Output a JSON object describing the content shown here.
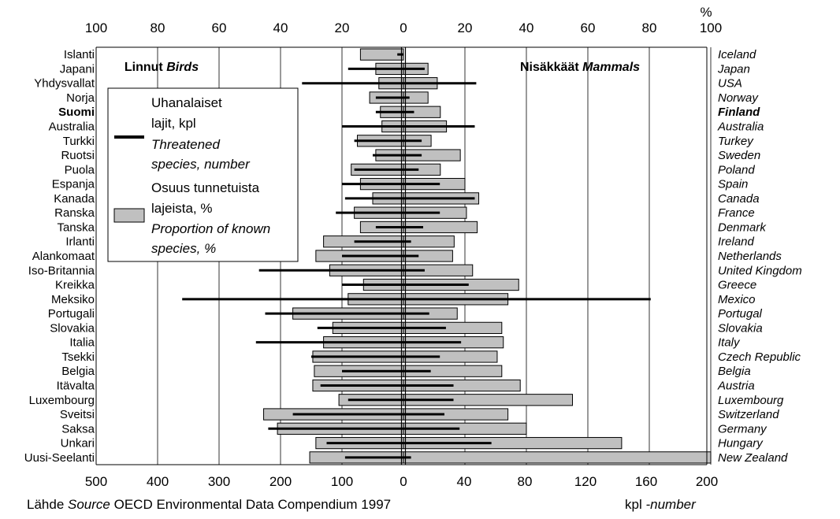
{
  "chart_data": {
    "type": "bar",
    "top_axis_ticks": [
      "100",
      "80",
      "60",
      "40",
      "20",
      "0",
      "20",
      "40",
      "60",
      "80",
      "100"
    ],
    "top_axis_unit": "%",
    "bottom_axis_ticks_birds": [
      "500",
      "400",
      "300",
      "200",
      "100",
      "0"
    ],
    "bottom_axis_ticks_mammals": [
      "40",
      "80",
      "120",
      "160",
      "200"
    ],
    "birds_header": {
      "fi": "Linnut",
      "en": "Birds"
    },
    "mammals_header": {
      "fi": "Nisäkkäät",
      "en": "Mammals"
    },
    "legend": {
      "threatened_fi": [
        "Uhanalaiset",
        "lajit, kpl"
      ],
      "threatened_en": [
        "Threatened",
        "species, number"
      ],
      "proportion_fi": [
        "Osuus tunnetuista",
        "lajeista, %"
      ],
      "proportion_en": [
        "Proportion of known",
        "species, %"
      ]
    },
    "source": {
      "fi": "Lähde",
      "en": "Source",
      "text": "OECD Environmental Data Compendium 1997"
    },
    "unit_note": {
      "fi": "kpl",
      "en": "number"
    },
    "colors": {
      "bar": "#c0c0c0",
      "line": "#000000",
      "grid": "#000000"
    },
    "countries": [
      {
        "fi": "Islanti",
        "en": "Iceland",
        "bird_pct": 14,
        "bird_num": 10,
        "mammal_pct": 0,
        "mammal_num": 0
      },
      {
        "fi": "Japani",
        "en": "Japan",
        "bird_pct": 9,
        "bird_num": 90,
        "mammal_pct": 8,
        "mammal_num": 14
      },
      {
        "fi": "Yhdysvallat",
        "en": "USA",
        "bird_pct": 8,
        "bird_num": 165,
        "mammal_pct": 11,
        "mammal_num": 48
      },
      {
        "fi": "Norja",
        "en": "Norway",
        "bird_pct": 11,
        "bird_num": 45,
        "mammal_pct": 8,
        "mammal_num": 4
      },
      {
        "fi": "Suomi",
        "en": "Finland",
        "bird_pct": 7.5,
        "bird_num": 45,
        "mammal_pct": 12,
        "mammal_num": 7,
        "bold": true
      },
      {
        "fi": "Australia",
        "en": "Australia",
        "bird_pct": 7,
        "bird_num": 100,
        "mammal_pct": 14,
        "mammal_num": 47
      },
      {
        "fi": "Turkki",
        "en": "Turkey",
        "bird_pct": 15,
        "bird_num": 80,
        "mammal_pct": 9,
        "mammal_num": 12
      },
      {
        "fi": "Ruotsi",
        "en": "Sweden",
        "bird_pct": 9,
        "bird_num": 50,
        "mammal_pct": 18.5,
        "mammal_num": 12
      },
      {
        "fi": "Puola",
        "en": "Poland",
        "bird_pct": 17,
        "bird_num": 80,
        "mammal_pct": 12,
        "mammal_num": 10
      },
      {
        "fi": "Espanja",
        "en": "Spain",
        "bird_pct": 14,
        "bird_num": 100,
        "mammal_pct": 20,
        "mammal_num": 24
      },
      {
        "fi": "Kanada",
        "en": "Canada",
        "bird_pct": 10,
        "bird_num": 95,
        "mammal_pct": 24.5,
        "mammal_num": 47
      },
      {
        "fi": "Ranska",
        "en": "France",
        "bird_pct": 16,
        "bird_num": 110,
        "mammal_pct": 20.5,
        "mammal_num": 24
      },
      {
        "fi": "Tanska",
        "en": "Denmark",
        "bird_pct": 14,
        "bird_num": 45,
        "mammal_pct": 24,
        "mammal_num": 13
      },
      {
        "fi": "Irlanti",
        "en": "Ireland",
        "bird_pct": 26,
        "bird_num": 80,
        "mammal_pct": 16.5,
        "mammal_num": 5
      },
      {
        "fi": "Alankomaat",
        "en": "Netherlands",
        "bird_pct": 28.5,
        "bird_num": 100,
        "mammal_pct": 16,
        "mammal_num": 10
      },
      {
        "fi": "Iso-Britannia",
        "en": "United Kingdom",
        "bird_pct": 24,
        "bird_num": 235,
        "mammal_pct": 22.5,
        "mammal_num": 14
      },
      {
        "fi": "Kreikka",
        "en": "Greece",
        "bird_pct": 13,
        "bird_num": 100,
        "mammal_pct": 37.5,
        "mammal_num": 43
      },
      {
        "fi": "Meksiko",
        "en": "Mexico",
        "bird_pct": 18,
        "bird_num": 360,
        "mammal_pct": 34,
        "mammal_num": 163
      },
      {
        "fi": "Portugali",
        "en": "Portugal",
        "bird_pct": 36,
        "bird_num": 225,
        "mammal_pct": 17.5,
        "mammal_num": 17
      },
      {
        "fi": "Slovakia",
        "en": "Slovakia",
        "bird_pct": 23,
        "bird_num": 140,
        "mammal_pct": 32,
        "mammal_num": 28
      },
      {
        "fi": "Italia",
        "en": "Italy",
        "bird_pct": 26,
        "bird_num": 240,
        "mammal_pct": 32.5,
        "mammal_num": 38
      },
      {
        "fi": "Tsekki",
        "en": "Czech Republic",
        "bird_pct": 29.5,
        "bird_num": 150,
        "mammal_pct": 30.5,
        "mammal_num": 24
      },
      {
        "fi": "Belgia",
        "en": "Belgia",
        "bird_pct": 29,
        "bird_num": 100,
        "mammal_pct": 32,
        "mammal_num": 18
      },
      {
        "fi": "Itävalta",
        "en": "Austria",
        "bird_pct": 29.5,
        "bird_num": 135,
        "mammal_pct": 38,
        "mammal_num": 33
      },
      {
        "fi": "Luxembourg",
        "en": "Luxembourg",
        "bird_pct": 21,
        "bird_num": 90,
        "mammal_pct": 55,
        "mammal_num": 33
      },
      {
        "fi": "Sveitsi",
        "en": "Switzerland",
        "bird_pct": 45.5,
        "bird_num": 180,
        "mammal_pct": 34,
        "mammal_num": 27
      },
      {
        "fi": "Saksa",
        "en": "Germany",
        "bird_pct": 41,
        "bird_num": 220,
        "mammal_pct": 40,
        "mammal_num": 37
      },
      {
        "fi": "Unkari",
        "en": "Hungary",
        "bird_pct": 28.5,
        "bird_num": 125,
        "mammal_pct": 71,
        "mammal_num": 58
      },
      {
        "fi": "Uusi-Seelanti",
        "en": "New Zealand",
        "bird_pct": 30.5,
        "bird_num": 95,
        "mammal_pct": 100,
        "mammal_num": 5
      }
    ]
  }
}
